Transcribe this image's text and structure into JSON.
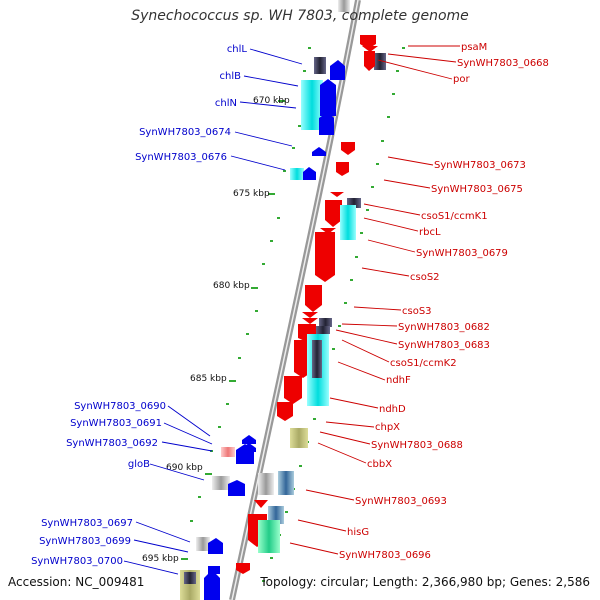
{
  "title": "Synechococcus sp. WH 7803, complete genome",
  "footer": {
    "accession": "Accession: NC_009481",
    "topology": "Topology: circular; Length: 2,366,980 bp; Genes: 2,586"
  },
  "scale_labels": [
    "670 kbp",
    "675 kbp",
    "680 kbp",
    "685 kbp",
    "690 kbp",
    "695 kbp"
  ],
  "left_labels": [
    "chlL",
    "chlB",
    "chlN",
    "SynWH7803_0674",
    "SynWH7803_0676",
    "SynWH7803_0690",
    "SynWH7803_0691",
    "SynWH7803_0692",
    "gloB",
    "SynWH7803_0697",
    "SynWH7803_0699",
    "SynWH7803_0700"
  ],
  "right_labels": [
    "psaM",
    "SynWH7803_0668",
    "por",
    "SynWH7803_0673",
    "SynWH7803_0675",
    "csoS1/ccmK1",
    "rbcL",
    "SynWH7803_0679",
    "csoS2",
    "csoS3",
    "SynWH7803_0682",
    "SynWH7803_0683",
    "csoS1/ccmK2",
    "ndhF",
    "ndhD",
    "chpX",
    "SynWH7803_0688",
    "cbbX",
    "SynWH7803_0693",
    "hisG",
    "SynWH7803_0696"
  ],
  "colors": {
    "forward_strand": "#0000ee",
    "reverse_strand": "#ee0000",
    "left_label": "#0000cc",
    "right_label": "#cc0000",
    "backbone": "#888888"
  }
}
